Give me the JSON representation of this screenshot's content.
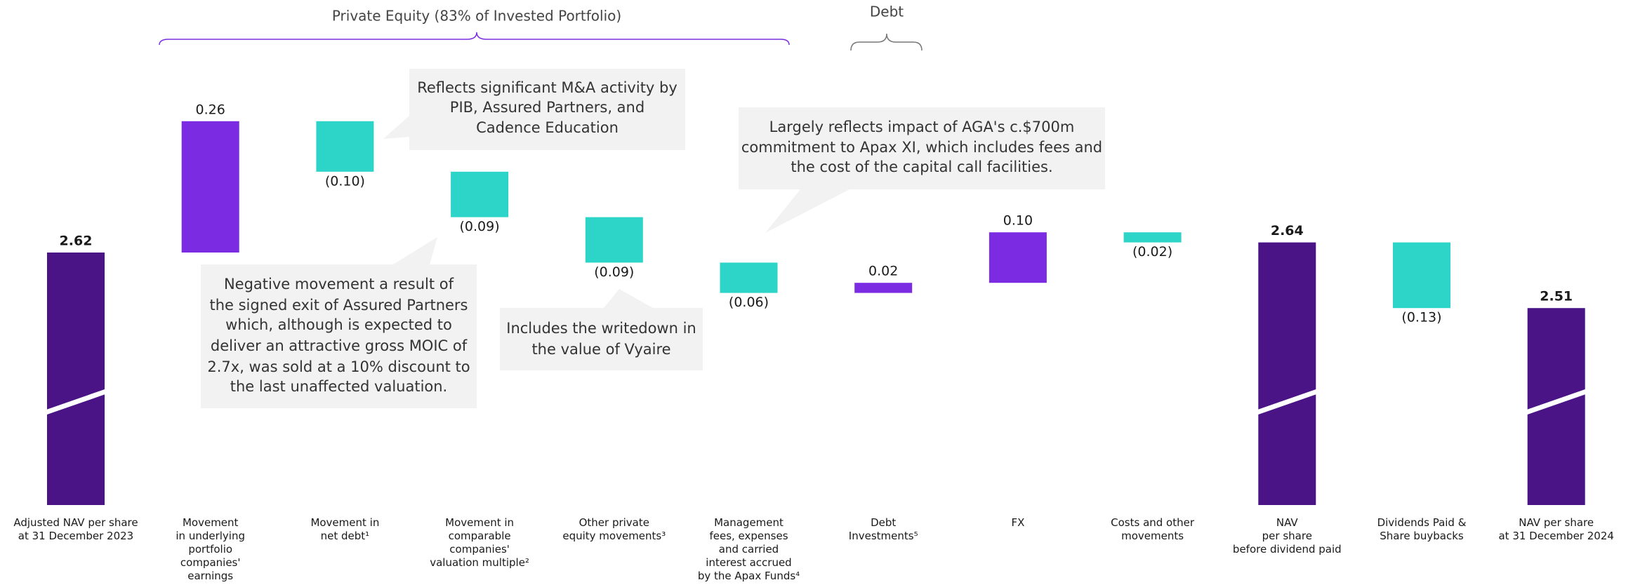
{
  "chart_data": {
    "type": "waterfall",
    "categories": [
      [
        "Adjusted NAV per share",
        "at 31 December 2023"
      ],
      [
        "Movement",
        "in underlying",
        "portfolio",
        "companies'",
        "earnings"
      ],
      [
        "Movement in",
        "net debt¹"
      ],
      [
        "Movement in",
        "comparable",
        "companies'",
        "valuation multiple²"
      ],
      [
        "Other private",
        "equity movements³"
      ],
      [
        "Management",
        "fees, expenses",
        "and carried",
        "interest accrued",
        "by the Apax Funds⁴"
      ],
      [
        "Debt",
        "Investments⁵"
      ],
      [
        "FX"
      ],
      [
        "Costs and other",
        "movements"
      ],
      [
        "NAV",
        "per share",
        "before dividend paid"
      ],
      [
        "Dividends Paid &",
        "Share buybacks"
      ],
      [
        "NAV per share",
        "at 31 December 2024"
      ]
    ],
    "values": [
      2.62,
      0.26,
      -0.1,
      -0.09,
      -0.09,
      -0.06,
      0.02,
      0.1,
      -0.02,
      2.64,
      -0.13,
      2.51
    ],
    "value_labels": [
      "2.62",
      "0.26",
      "(0.10)",
      "(0.09)",
      "(0.09)",
      "(0.06)",
      "0.02",
      "0.10",
      "(0.02)",
      "2.64",
      "(0.13)",
      "2.51"
    ],
    "measure": [
      "absolute",
      "relative",
      "relative",
      "relative",
      "relative",
      "relative",
      "relative",
      "relative",
      "relative",
      "absolute",
      "relative",
      "absolute"
    ],
    "colors": {
      "absolute": "#4a1486",
      "increase": "#7b2be2",
      "decrease": "#2dd4c8"
    },
    "ylim": [
      2.12,
      3.12
    ],
    "groups": [
      {
        "label": "Private Equity (83% of Invested Portfolio)"
      },
      {
        "label": "Debt"
      }
    ],
    "annotations": [
      {
        "lines": [
          "Reflects significant M&A activity by",
          "PIB, Assured  Partners, and",
          "Cadence Education"
        ]
      },
      {
        "lines": [
          "Largely reflects impact of AGA's c.$700m",
          "commitment to Apax XI, which includes fees and",
          "the cost of the capital call facilities."
        ]
      },
      {
        "lines": [
          "Negative movement a result of",
          "the signed exit of Assured Partners",
          "which, although is expected to",
          "deliver an attractive gross MOIC of",
          "2.7x, was sold at a 10% discount to",
          "the last unaffected valuation."
        ]
      },
      {
        "lines": [
          "Includes the writedown in",
          "the value of Vyaire"
        ]
      }
    ]
  }
}
